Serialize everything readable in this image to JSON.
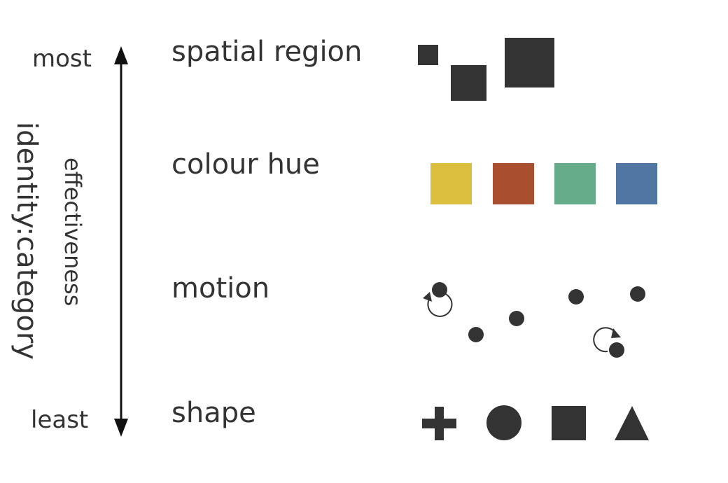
{
  "axis": {
    "top_label": "most",
    "bottom_label": "least",
    "axis_title": "effectiveness",
    "category_title": "identity:category"
  },
  "rows": [
    {
      "label": "spatial region",
      "glyph": "spatial-squares"
    },
    {
      "label": "colour hue",
      "glyph": "color-swatches"
    },
    {
      "label": "motion",
      "glyph": "moving-dots"
    },
    {
      "label": "shape",
      "glyph": "shape-set"
    }
  ],
  "colors": {
    "ink": "#333333",
    "hues": [
      "#DDBF3F",
      "#A84F2F",
      "#66AC8A",
      "#5276A4"
    ]
  },
  "icons": [
    "plus-icon",
    "circle-icon",
    "square-icon",
    "triangle-icon",
    "rotation-arrow-icon"
  ]
}
